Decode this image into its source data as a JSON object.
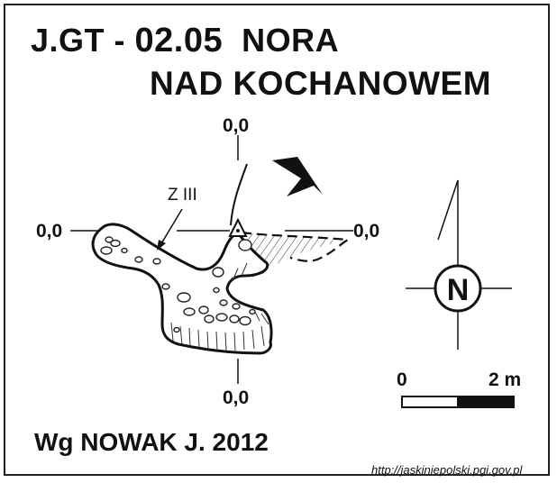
{
  "title": {
    "prefix": "J.GT -",
    "number": "02.05",
    "name_line1": "NORA",
    "name_line2": "NAD KOCHANOWEM"
  },
  "survey": {
    "datum_top": "0,0",
    "datum_left": "0,0",
    "datum_right": "0,0",
    "datum_bottom": "0,0",
    "zone_label": "Z III"
  },
  "compass": {
    "letter": "N"
  },
  "scale": {
    "start": "0",
    "end": "2 m"
  },
  "credit": "Wg NOWAK J. 2012",
  "source_url": "http://jaskiniepolski.pgi.gov.pl",
  "icons": [
    "entrance-arrow-icon",
    "north-compass-icon",
    "survey-point-triangle-icon"
  ]
}
